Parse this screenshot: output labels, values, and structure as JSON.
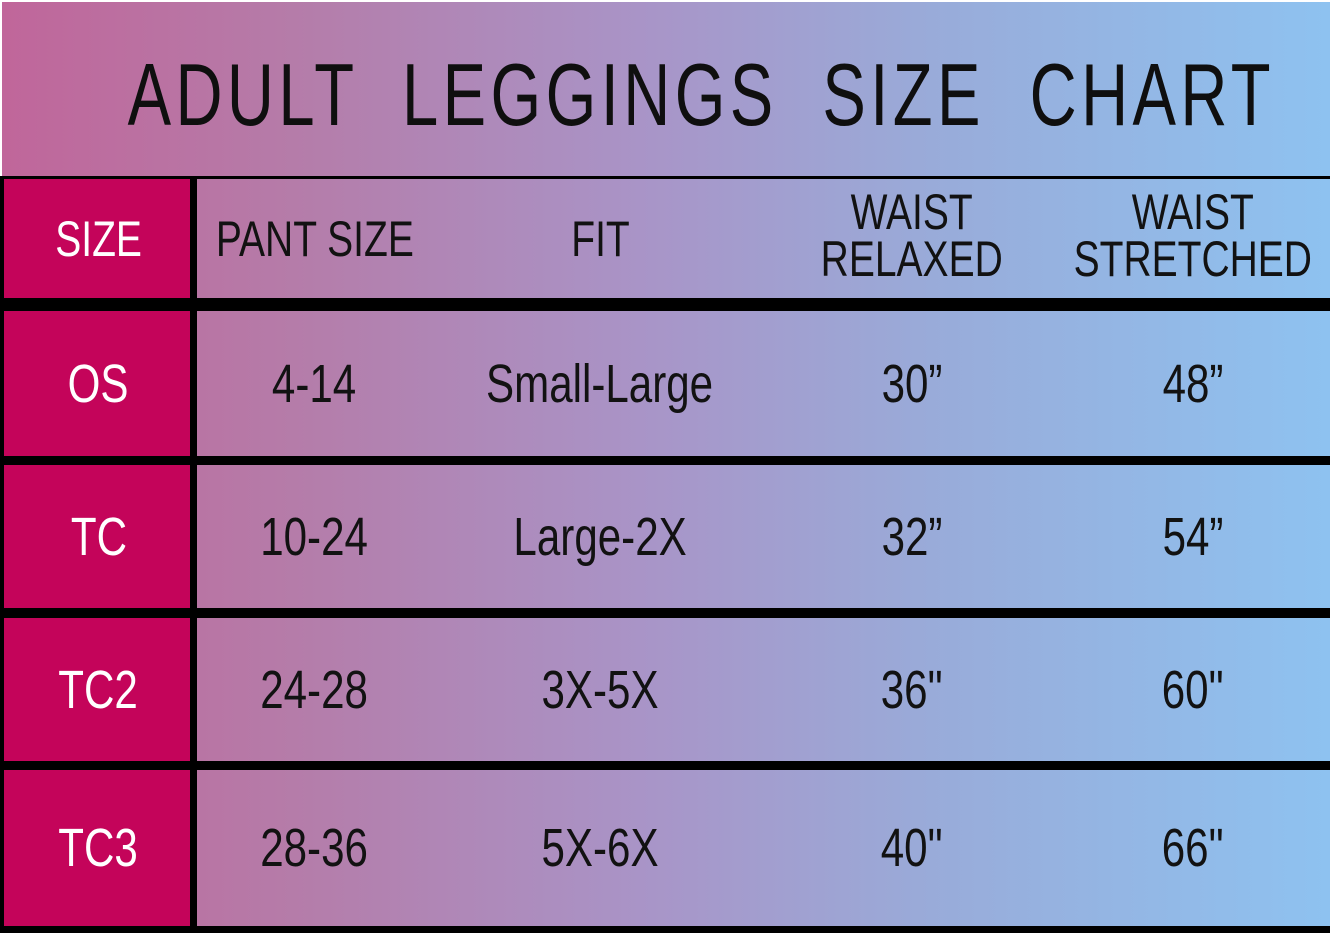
{
  "title": "ADULT LEGGINGS SIZE CHART",
  "header": {
    "size": "SIZE",
    "pant_size": "PANT SIZE",
    "fit": "FIT",
    "waist_relaxed": {
      "line1": "WAIST",
      "line2": "RELAXED"
    },
    "waist_stretched": {
      "line1": "WAIST",
      "line2": "STRETCHED"
    }
  },
  "rows": [
    {
      "size": "OS",
      "pant_size": "4-14",
      "fit": "Small-Large",
      "waist_relaxed": "30”",
      "waist_stretched": "48”"
    },
    {
      "size": "TC",
      "pant_size": "10-24",
      "fit": "Large-2X",
      "waist_relaxed": "32”",
      "waist_stretched": "54”"
    },
    {
      "size": "TC2",
      "pant_size": "24-28",
      "fit": "3X-5X",
      "waist_relaxed": "36\"",
      "waist_stretched": "60\""
    },
    {
      "size": "TC3",
      "pant_size": "28-36",
      "fit": "5X-6X",
      "waist_relaxed": "40\"",
      "waist_stretched": "66\""
    }
  ],
  "colors": {
    "size_column_bg": "#c4045a",
    "size_column_text": "#ffffff",
    "body_text": "#121212",
    "grid_lines": "#000000",
    "gradient_left": "#c0669a",
    "gradient_middle": "#a994c7",
    "gradient_right": "#8ec2f0"
  },
  "chart_data": {
    "type": "table",
    "title": "ADULT LEGGINGS SIZE CHART",
    "columns": [
      "SIZE",
      "PANT SIZE",
      "FIT",
      "WAIST RELAXED",
      "WAIST STRETCHED"
    ],
    "rows": [
      [
        "OS",
        "4-14",
        "Small-Large",
        "30”",
        "48”"
      ],
      [
        "TC",
        "10-24",
        "Large-2X",
        "32”",
        "54”"
      ],
      [
        "TC2",
        "24-28",
        "3X-5X",
        "36\"",
        "60\""
      ],
      [
        "TC3",
        "28-36",
        "5X-6X",
        "40\"",
        "66\""
      ]
    ]
  }
}
